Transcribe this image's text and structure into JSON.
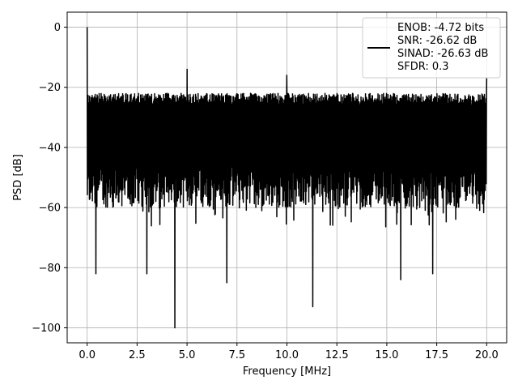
{
  "chart_data": {
    "type": "line",
    "title": "",
    "xlabel": "Frequency [MHz]",
    "ylabel": "PSD [dB]",
    "xlim": [
      -1.0,
      21.0
    ],
    "ylim": [
      -105,
      5
    ],
    "x_ticks": [
      0.0,
      2.5,
      5.0,
      7.5,
      10.0,
      12.5,
      15.0,
      17.5,
      20.0
    ],
    "x_tick_labels": [
      "0.0",
      "2.5",
      "5.0",
      "7.5",
      "10.0",
      "12.5",
      "15.0",
      "17.5",
      "20.0"
    ],
    "y_ticks": [
      0,
      -20,
      -40,
      -60,
      -80,
      -100
    ],
    "y_tick_labels": [
      "0",
      "−20",
      "−40",
      "−60",
      "−80",
      "−100"
    ],
    "grid": true,
    "legend_position": "top-right",
    "series": [
      {
        "color": "#000000",
        "noise_floor_top_db": -22,
        "noise_floor_bottom_db": -68,
        "peaks": [
          {
            "x": 0.0,
            "y": 0
          },
          {
            "x": 5.0,
            "y": -14
          },
          {
            "x": 10.0,
            "y": -16
          },
          {
            "x": 20.0,
            "y": -17
          }
        ],
        "dips": [
          {
            "x": 0.45,
            "y": -82
          },
          {
            "x": 3.0,
            "y": -82
          },
          {
            "x": 4.4,
            "y": -100
          },
          {
            "x": 7.0,
            "y": -85
          },
          {
            "x": 11.3,
            "y": -93
          },
          {
            "x": 15.7,
            "y": -84
          },
          {
            "x": 17.3,
            "y": -82
          }
        ]
      }
    ],
    "legend": {
      "lines": [
        "ENOB: -4.72 bits",
        "SNR: -26.62 dB",
        "SINAD: -26.63 dB",
        "SFDR: 0.3"
      ]
    }
  }
}
